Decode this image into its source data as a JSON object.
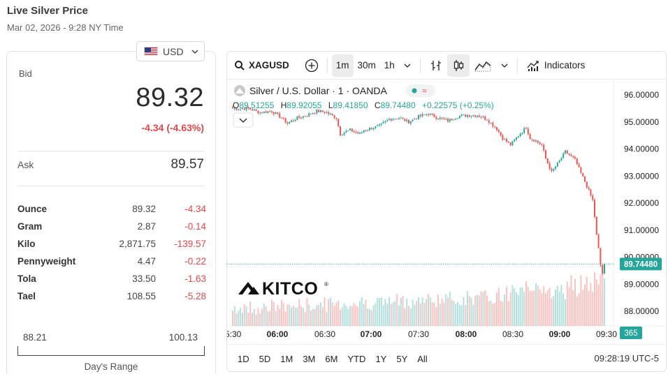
{
  "header": {
    "title": "Live Silver Price",
    "time": "Mar 02, 2026 - 9:28 NY Time"
  },
  "currency": {
    "selected": "USD"
  },
  "price": {
    "bid_label": "Bid",
    "bid": "89.32",
    "change": "-4.34 (-4.63%)",
    "ask_label": "Ask",
    "ask": "89.57"
  },
  "units": [
    {
      "name": "Ounce",
      "price": "89.32",
      "change": "-4.34"
    },
    {
      "name": "Gram",
      "price": "2.87",
      "change": "-0.14"
    },
    {
      "name": "Kilo",
      "price": "2,871.75",
      "change": "-139.57"
    },
    {
      "name": "Pennyweight",
      "price": "4.47",
      "change": "-0.22"
    },
    {
      "name": "Tola",
      "price": "33.50",
      "change": "-1.63"
    },
    {
      "name": "Tael",
      "price": "108.55",
      "change": "-5.28"
    }
  ],
  "day_range": {
    "low": "88.21",
    "high": "100.13",
    "label": "Day's Range"
  },
  "toolbar": {
    "symbol": "XAGUSD",
    "intervals": [
      "1m",
      "30m",
      "1h"
    ],
    "active_interval": "1m",
    "indicators_label": "Indicators"
  },
  "legend": {
    "title": "Silver / U.S. Dollar · 1 · OANDA",
    "o_label": "O",
    "o_value": "89.51255",
    "h_label": "H",
    "h_value": "89.92055",
    "l_label": "L",
    "l_value": "89.41850",
    "c_label": "C",
    "c_value": "89.74480",
    "change": "+0.22575 (+0.25%)"
  },
  "watermark": "KITCO",
  "bottom": {
    "ranges": [
      "1D",
      "5D",
      "1M",
      "3M",
      "6M",
      "YTD",
      "1Y",
      "5Y",
      "All"
    ],
    "time": "09:28:19 UTC-5"
  },
  "colors": {
    "up": "#26a69a",
    "down": "#ef5350",
    "negative": "#e04848"
  },
  "chart_data": {
    "type": "candlestick",
    "y_ticks": [
      "96.00000",
      "95.00000",
      "94.00000",
      "93.00000",
      "92.00000",
      "91.00000",
      "90.00000",
      "89.00000",
      "88.00000"
    ],
    "ylim": [
      87.6,
      96.3
    ],
    "x_ticks": [
      "5:30",
      "06:00",
      "06:30",
      "07:00",
      "07:30",
      "08:00",
      "08:30",
      "09:00",
      "09:30"
    ],
    "x_ticks_bold": [
      "06:00",
      "07:00",
      "08:00",
      "09:00"
    ],
    "last_price_label": "89.74480",
    "last_price": 89.7448,
    "volume_label": "365",
    "close_path": [
      [
        0,
        95.5
      ],
      [
        8,
        95.5
      ],
      [
        14,
        95.35
      ],
      [
        20,
        95.4
      ],
      [
        25,
        95.15
      ],
      [
        28,
        94.95
      ],
      [
        33,
        95.15
      ],
      [
        38,
        95.25
      ],
      [
        43,
        95.4
      ],
      [
        48,
        95.35
      ],
      [
        53,
        95.15
      ],
      [
        55,
        94.55
      ],
      [
        60,
        94.7
      ],
      [
        65,
        94.55
      ],
      [
        67,
        94.7
      ],
      [
        70,
        94.75
      ],
      [
        75,
        94.85
      ],
      [
        80,
        95.1
      ],
      [
        85,
        95.15
      ],
      [
        90,
        95.0
      ],
      [
        95,
        95.2
      ],
      [
        100,
        95.3
      ],
      [
        105,
        95.15
      ],
      [
        110,
        95.05
      ],
      [
        115,
        95.2
      ],
      [
        120,
        95.25
      ],
      [
        125,
        95.25
      ],
      [
        130,
        95.1
      ],
      [
        135,
        94.75
      ],
      [
        138,
        94.4
      ],
      [
        142,
        94.15
      ],
      [
        146,
        94.5
      ],
      [
        150,
        94.8
      ],
      [
        152,
        94.4
      ],
      [
        155,
        94.3
      ],
      [
        158,
        94.15
      ],
      [
        160,
        93.65
      ],
      [
        163,
        93.15
      ],
      [
        167,
        93.55
      ],
      [
        170,
        93.9
      ],
      [
        175,
        93.6
      ],
      [
        178,
        93.1
      ],
      [
        180,
        92.8
      ],
      [
        182,
        92.45
      ],
      [
        184,
        92.1
      ],
      [
        185,
        91.5
      ],
      [
        186,
        90.8
      ],
      [
        187,
        90.3
      ],
      [
        188,
        89.7
      ],
      [
        189,
        89.4
      ],
      [
        190,
        89.9
      ]
    ]
  }
}
